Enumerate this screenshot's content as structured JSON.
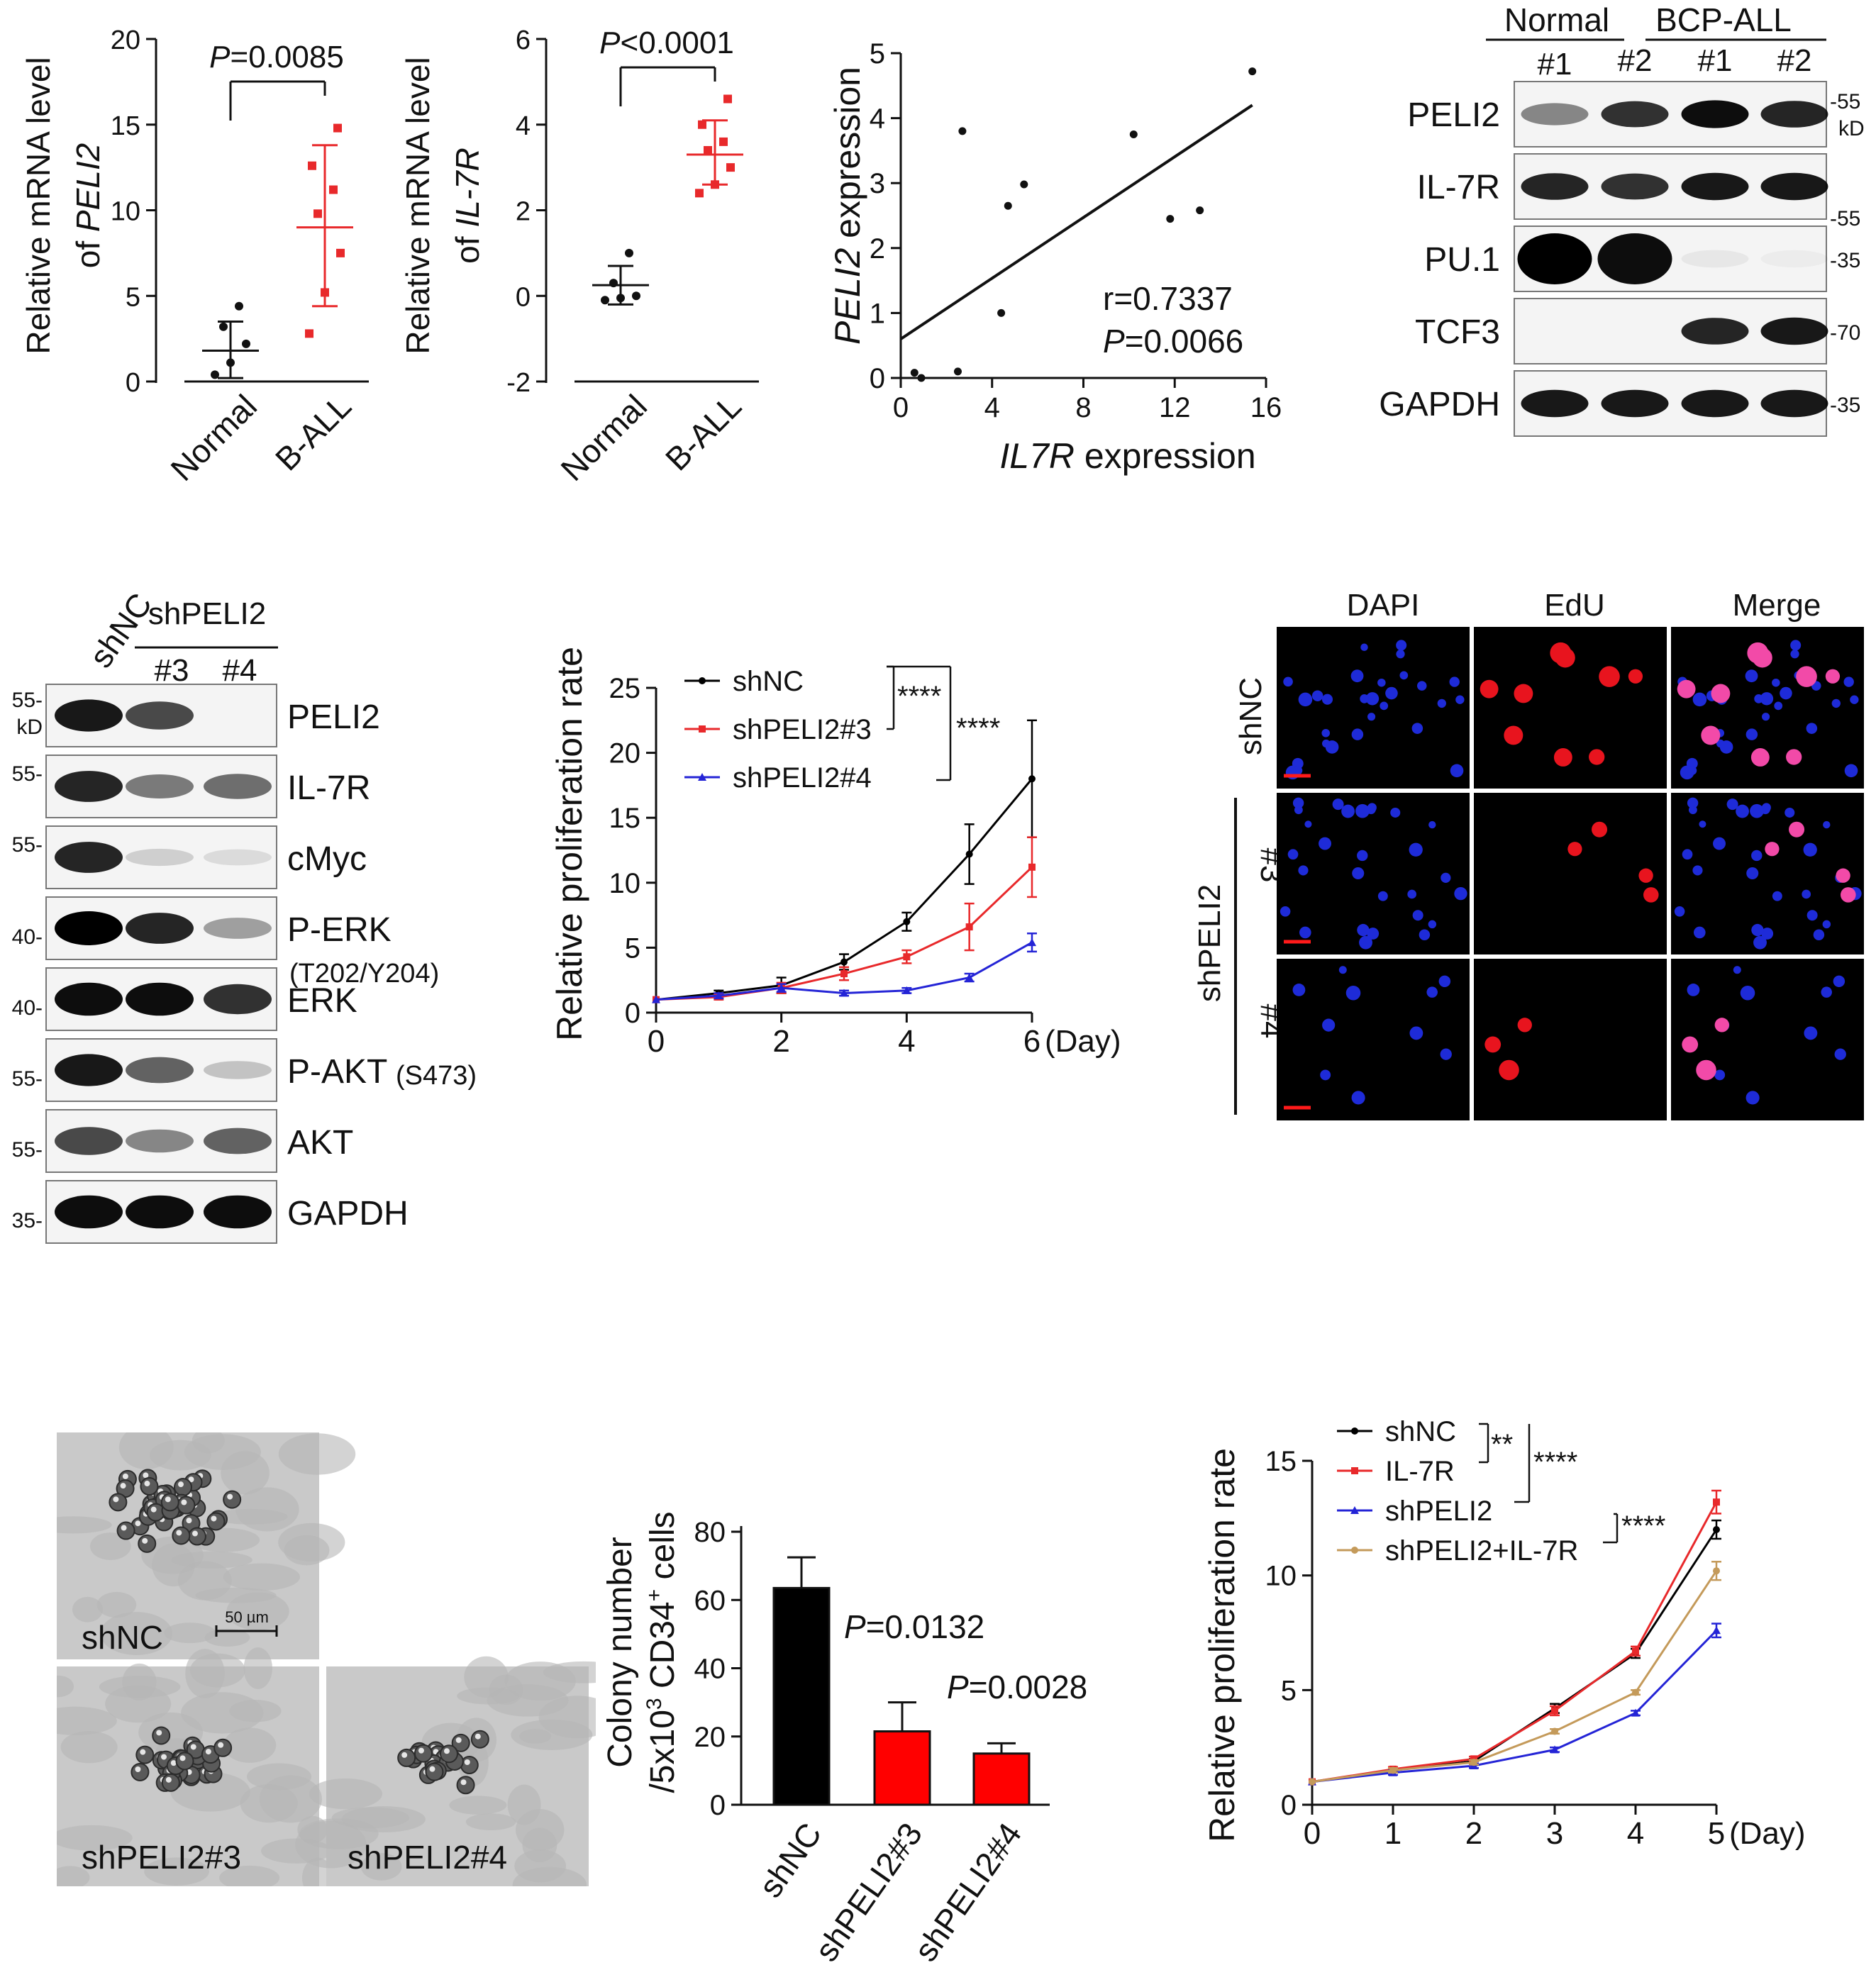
{
  "panelA": {
    "peli2": {
      "ylabel_line1": "Relative mRNA level",
      "ylabel_line2_prefix": "of ",
      "ylabel_line2_gene": "PELI2",
      "yticks": [
        "0",
        "5",
        "10",
        "15",
        "20"
      ],
      "categories": [
        "Normal",
        "B-ALL"
      ],
      "p_prefix": "P",
      "p_value": "=0.0085",
      "normal_points": [
        0.4,
        1.1,
        2.2,
        3.2,
        4.4
      ],
      "ball_points": [
        2.8,
        5.2,
        7.5,
        9.8,
        11.2,
        12.6,
        14.8
      ],
      "normal_mean": 1.8,
      "normal_sd": [
        0.2,
        3.5
      ],
      "ball_mean": 9.0,
      "ball_sd": [
        4.4,
        13.8
      ],
      "ylim": [
        0,
        20
      ]
    },
    "il7r": {
      "ylabel_line1": "Relative mRNA level",
      "ylabel_line2_prefix": "of ",
      "ylabel_line2_gene": "IL-7R",
      "yticks": [
        "-2",
        "0",
        "2",
        "4",
        "6"
      ],
      "categories": [
        "Normal",
        "B-ALL"
      ],
      "p_prefix": "P",
      "p_value": "<0.0001",
      "normal_points": [
        -0.1,
        -0.05,
        0.0,
        0.3,
        1.0
      ],
      "ball_points": [
        2.4,
        2.6,
        3.0,
        3.4,
        3.6,
        4.0,
        4.6
      ],
      "normal_mean": 0.25,
      "normal_sd": [
        -0.2,
        0.7
      ],
      "ball_mean": 3.3,
      "ball_sd": [
        2.6,
        4.1
      ],
      "ylim": [
        -2,
        6
      ]
    },
    "scatter": {
      "ylabel_gene": "PELI2",
      "ylabel_rest": " expression",
      "xlabel_gene": "IL7R",
      "xlabel_rest": " expression",
      "xticks": [
        "0",
        "4",
        "8",
        "12",
        "16"
      ],
      "yticks": [
        "0",
        "1",
        "2",
        "3",
        "4",
        "5"
      ],
      "r_text": "r=0.7337",
      "p_prefix": "P",
      "p_value": "=0.0066",
      "points": [
        [
          0.6,
          0.08
        ],
        [
          0.9,
          0.0
        ],
        [
          2.5,
          0.1
        ],
        [
          2.7,
          3.8
        ],
        [
          4.4,
          1.0
        ],
        [
          4.7,
          2.65
        ],
        [
          5.4,
          2.98
        ],
        [
          10.2,
          3.75
        ],
        [
          11.8,
          2.45
        ],
        [
          13.1,
          2.58
        ],
        [
          15.4,
          4.72
        ]
      ],
      "line": [
        [
          0,
          0.6
        ],
        [
          15.4,
          4.2
        ]
      ],
      "xlim": [
        0,
        16
      ],
      "ylim": [
        0,
        5
      ]
    },
    "western": {
      "group1": "Normal",
      "group2": "BCP-ALL",
      "lanes": [
        "#1",
        "#2",
        "#1",
        "#2"
      ],
      "rows": [
        {
          "label": "PELI2",
          "marker": "-55",
          "unit": "kD",
          "intensity": [
            0.45,
            0.8,
            0.95,
            0.85
          ]
        },
        {
          "label": "IL-7R",
          "marker": "-55",
          "intensity": [
            0.85,
            0.8,
            0.9,
            0.9
          ]
        },
        {
          "label": "PU.1",
          "marker": "-35",
          "intensity": [
            1.0,
            0.95,
            0.05,
            0.03
          ]
        },
        {
          "label": "TCF3",
          "marker": "-70",
          "intensity": [
            0.0,
            0.0,
            0.85,
            0.9
          ]
        },
        {
          "label": "GAPDH",
          "marker": "-35",
          "intensity": [
            0.9,
            0.9,
            0.9,
            0.9
          ]
        }
      ]
    }
  },
  "panelB": {
    "western": {
      "lane1": "shNC",
      "group": "shPELI2",
      "sublanes": [
        "#3",
        "#4"
      ],
      "rows": [
        {
          "label": "PELI2",
          "sub": "",
          "marker": "55-",
          "unit": "kD",
          "intensity": [
            0.9,
            0.7,
            0.0
          ]
        },
        {
          "label": "IL-7R",
          "sub": "",
          "marker": "55-",
          "intensity": [
            0.85,
            0.5,
            0.55
          ]
        },
        {
          "label": "cMyc",
          "sub": "",
          "marker": "55-",
          "intensity": [
            0.85,
            0.15,
            0.1
          ]
        },
        {
          "label": "P-ERK",
          "sub": "(T202/Y204)",
          "marker": "40-",
          "intensity": [
            1.0,
            0.85,
            0.35
          ]
        },
        {
          "label": "ERK",
          "sub": "",
          "marker": "40-",
          "intensity": [
            0.95,
            0.95,
            0.8
          ]
        },
        {
          "label": "P-AKT",
          "sub": "(S473)",
          "marker": "55-",
          "intensity": [
            0.9,
            0.6,
            0.2
          ]
        },
        {
          "label": "AKT",
          "sub": "",
          "marker": "55-",
          "intensity": [
            0.7,
            0.45,
            0.6
          ]
        },
        {
          "label": "GAPDH",
          "sub": "",
          "marker": "35-",
          "intensity": [
            0.95,
            0.95,
            0.95
          ]
        }
      ]
    },
    "prolif": {
      "ylabel": "Relative proliferation rate",
      "xticks": [
        "0",
        "2",
        "4",
        "6"
      ],
      "xunit": "(Day)",
      "yticks": [
        "0",
        "5",
        "10",
        "15",
        "20",
        "25"
      ],
      "sig1": "****",
      "sig2": "****",
      "x": [
        0,
        1,
        2,
        3,
        4,
        5,
        6
      ],
      "series": [
        {
          "name": "shNC",
          "color": "#000000",
          "values": [
            1.0,
            1.5,
            2.1,
            3.9,
            7.0,
            12.2,
            18.0
          ],
          "err": [
            0,
            0.2,
            0.6,
            0.6,
            0.7,
            2.3,
            4.5
          ]
        },
        {
          "name": "shPELI2#3",
          "color": "#e8292b",
          "values": [
            1.0,
            1.2,
            1.9,
            3.0,
            4.3,
            6.6,
            11.2
          ],
          "err": [
            0,
            0.2,
            0.4,
            0.5,
            0.5,
            1.8,
            2.3
          ]
        },
        {
          "name": "shPELI2#4",
          "color": "#2424d6",
          "values": [
            1.0,
            1.3,
            1.9,
            1.5,
            1.7,
            2.7,
            5.4
          ],
          "err": [
            0,
            0.2,
            0.3,
            0.2,
            0.2,
            0.3,
            0.7
          ]
        }
      ],
      "xlim": [
        0,
        6
      ],
      "ylim": [
        0,
        25
      ]
    },
    "edu": {
      "columns": [
        "DAPI",
        "EdU",
        "Merge"
      ],
      "row1": "shNC",
      "group": "shPELI2",
      "row2": "#3",
      "row3": "#4"
    }
  },
  "panelC": {
    "colonies": {
      "labels": [
        "shNC",
        "shPELI2#3",
        "shPELI2#4"
      ],
      "scalebar": "50 µm"
    },
    "bar": {
      "ylabel_line1": "Colony number",
      "ylabel_line2": "/5x10",
      "ylabel_exp": "3",
      "ylabel_rest": " CD34",
      "ylabel_sup": "+",
      "ylabel_end": " cells",
      "yticks": [
        "0",
        "20",
        "40",
        "60",
        "80"
      ],
      "categories": [
        "shNC",
        "shPELI2#3",
        "shPELI2#4"
      ],
      "values": [
        63.5,
        21.5,
        15.0
      ],
      "err": [
        9.0,
        8.5,
        3.0
      ],
      "colors": [
        "#000000",
        "#ff0000",
        "#ff0000"
      ],
      "p1_prefix": "P",
      "p1_value": "=0.0132",
      "p2_prefix": "P",
      "p2_value": "=0.0028",
      "ylim": [
        0,
        80
      ]
    },
    "prolif": {
      "ylabel": "Relative proliferation rate",
      "xticks": [
        "0",
        "1",
        "2",
        "3",
        "4",
        "5"
      ],
      "xunit": "(Day)",
      "yticks": [
        "0",
        "5",
        "10",
        "15"
      ],
      "sig1": "**",
      "sig2": "****",
      "sig3": "****",
      "x": [
        0,
        1,
        2,
        3,
        4,
        5
      ],
      "series": [
        {
          "name": "shNC",
          "color": "#000000",
          "values": [
            1.0,
            1.5,
            1.9,
            4.2,
            6.6,
            12.0
          ],
          "err": [
            0,
            0.1,
            0.1,
            0.2,
            0.2,
            0.4
          ]
        },
        {
          "name": "IL-7R",
          "color": "#e8292b",
          "values": [
            1.0,
            1.55,
            2.0,
            4.1,
            6.7,
            13.2
          ],
          "err": [
            0,
            0.1,
            0.1,
            0.2,
            0.2,
            0.5
          ]
        },
        {
          "name": "shPELI2",
          "color": "#2424d6",
          "values": [
            1.0,
            1.4,
            1.7,
            2.4,
            4.0,
            7.6
          ],
          "err": [
            0,
            0.1,
            0.1,
            0.1,
            0.1,
            0.3
          ]
        },
        {
          "name": "shPELI2+IL-7R",
          "color": "#c49a5a",
          "values": [
            1.0,
            1.5,
            1.85,
            3.2,
            4.9,
            10.2
          ],
          "err": [
            0,
            0.1,
            0.1,
            0.1,
            0.1,
            0.4
          ]
        }
      ],
      "xlim": [
        0,
        5
      ],
      "ylim": [
        0,
        15
      ]
    }
  }
}
